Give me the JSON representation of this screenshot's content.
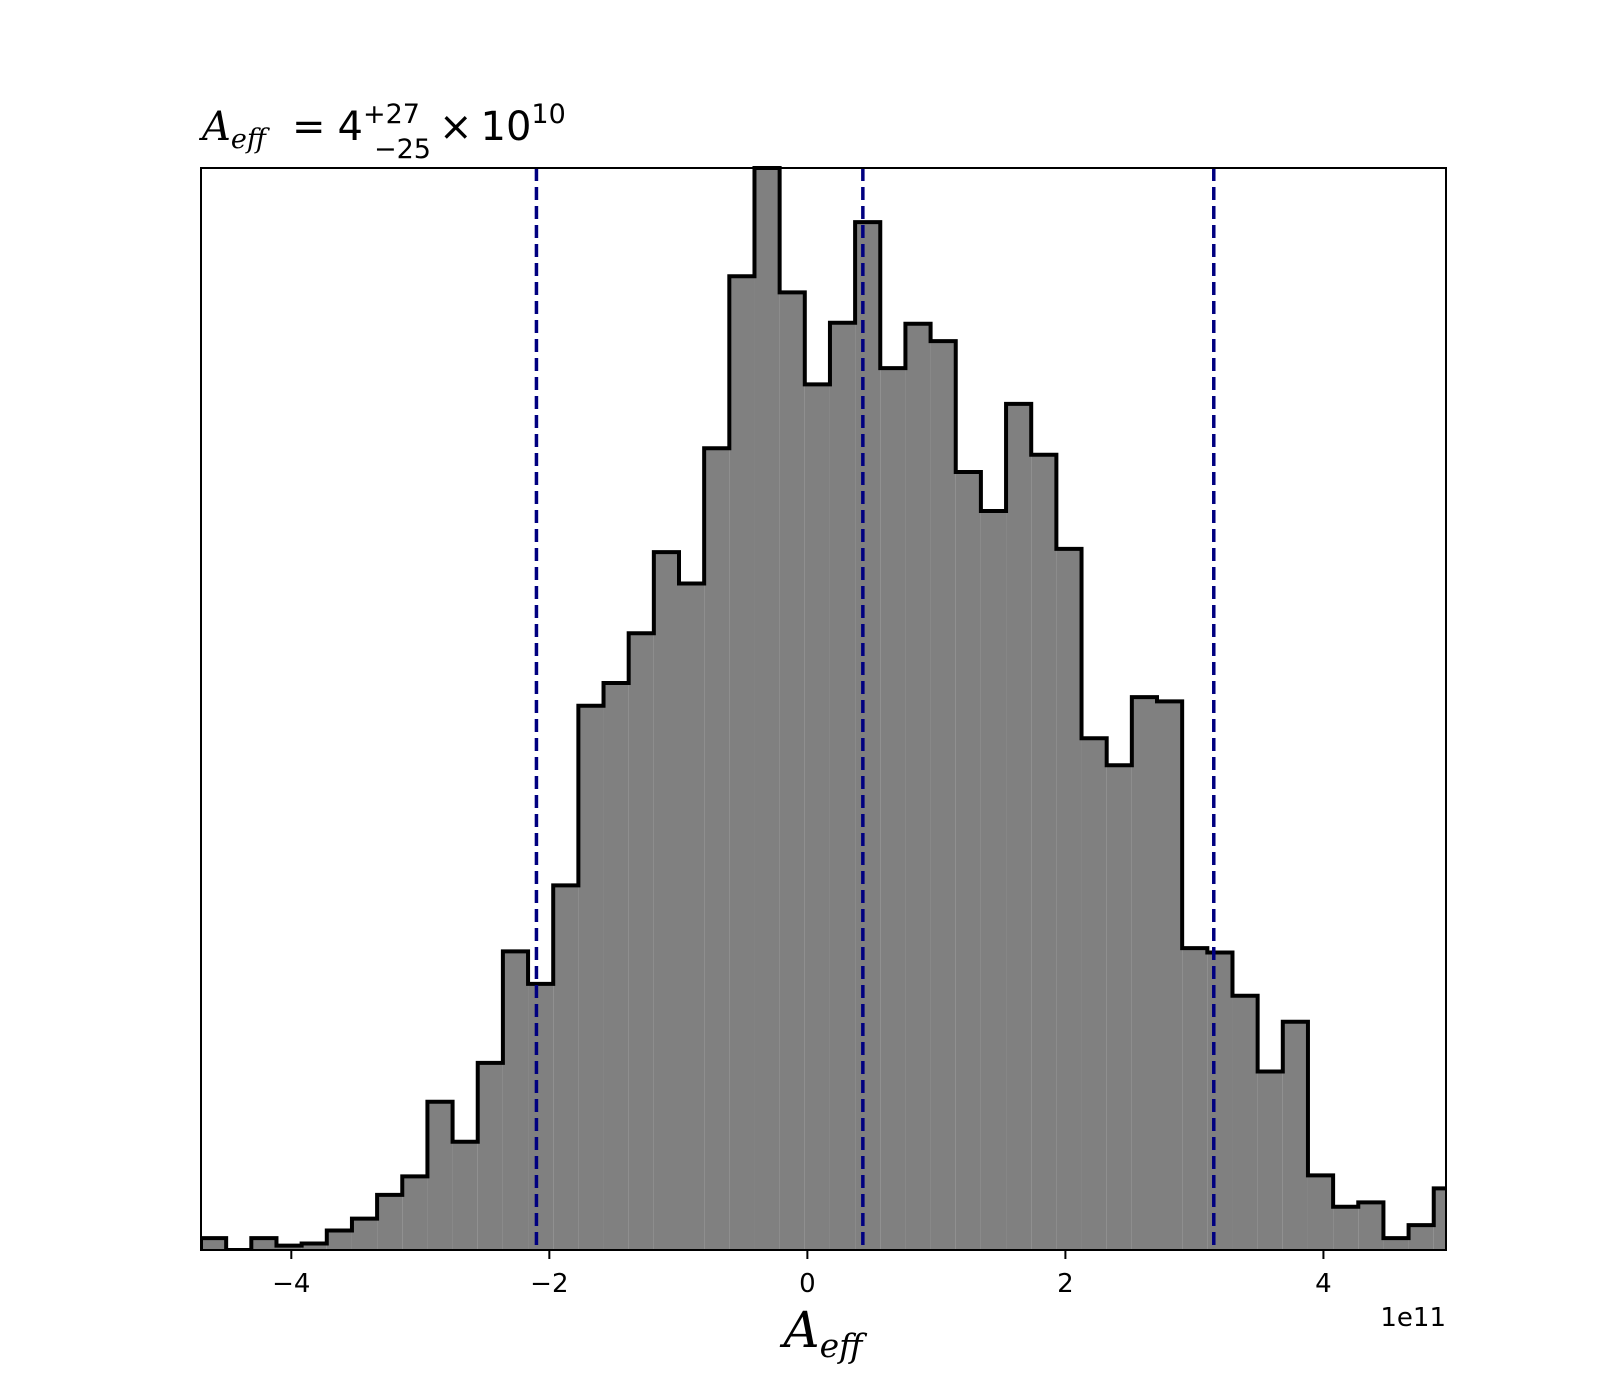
{
  "chart_data": {
    "type": "histogram",
    "title": {
      "symbol": "A",
      "symbol_sub": "eff",
      "equals": "=",
      "median": "4",
      "upper": "+27",
      "lower": "−25",
      "times": "×",
      "base": "10",
      "exponent": "10"
    },
    "xlabel": {
      "symbol": "A",
      "sub": "eff"
    },
    "ylabel": "",
    "x_offset_text": "1e11",
    "xlim": [
      -4.7,
      4.95
    ],
    "ylim": [
      0,
      1
    ],
    "x_ticks": [
      -4,
      -2,
      0,
      2,
      4
    ],
    "x_tick_labels": [
      "−4",
      "−2",
      "0",
      "2",
      "4"
    ],
    "y_ticks_shown": false,
    "grid": false,
    "legend": "none",
    "hist_fill_color": "#808080",
    "hist_edge_color": "#000000",
    "quantile_line_color": "#000080",
    "quantile_lines": [
      -2.1,
      0.43,
      3.15
    ],
    "bin_edges": [
      -4.7,
      -4.505,
      -4.31,
      -4.115,
      -3.92,
      -3.725,
      -3.53,
      -3.335,
      -3.14,
      -2.945,
      -2.75,
      -2.555,
      -2.36,
      -2.165,
      -1.97,
      -1.775,
      -1.58,
      -1.385,
      -1.19,
      -0.995,
      -0.8,
      -0.605,
      -0.41,
      -0.215,
      -0.02,
      0.175,
      0.37,
      0.565,
      0.76,
      0.955,
      1.15,
      1.345,
      1.54,
      1.735,
      1.93,
      2.125,
      2.32,
      2.515,
      2.71,
      2.905,
      3.1,
      3.295,
      3.49,
      3.685,
      3.88,
      4.075,
      4.27,
      4.465,
      4.66,
      4.855,
      5.05
    ],
    "bin_heights": [
      0.011,
      0,
      0.011,
      0.004,
      0.006,
      0.018,
      0.029,
      0.051,
      0.068,
      0.137,
      0.1,
      0.173,
      0.276,
      0.246,
      0.337,
      0.503,
      0.524,
      0.57,
      0.645,
      0.616,
      0.741,
      0.9,
      1.0,
      0.885,
      0.8,
      0.857,
      0.95,
      0.815,
      0.856,
      0.84,
      0.719,
      0.683,
      0.782,
      0.735,
      0.648,
      0.473,
      0.448,
      0.511,
      0.507,
      0.279,
      0.275,
      0.235,
      0.165,
      0.211,
      0.069,
      0.04,
      0.044,
      0.011,
      0.023,
      0.057
    ]
  }
}
